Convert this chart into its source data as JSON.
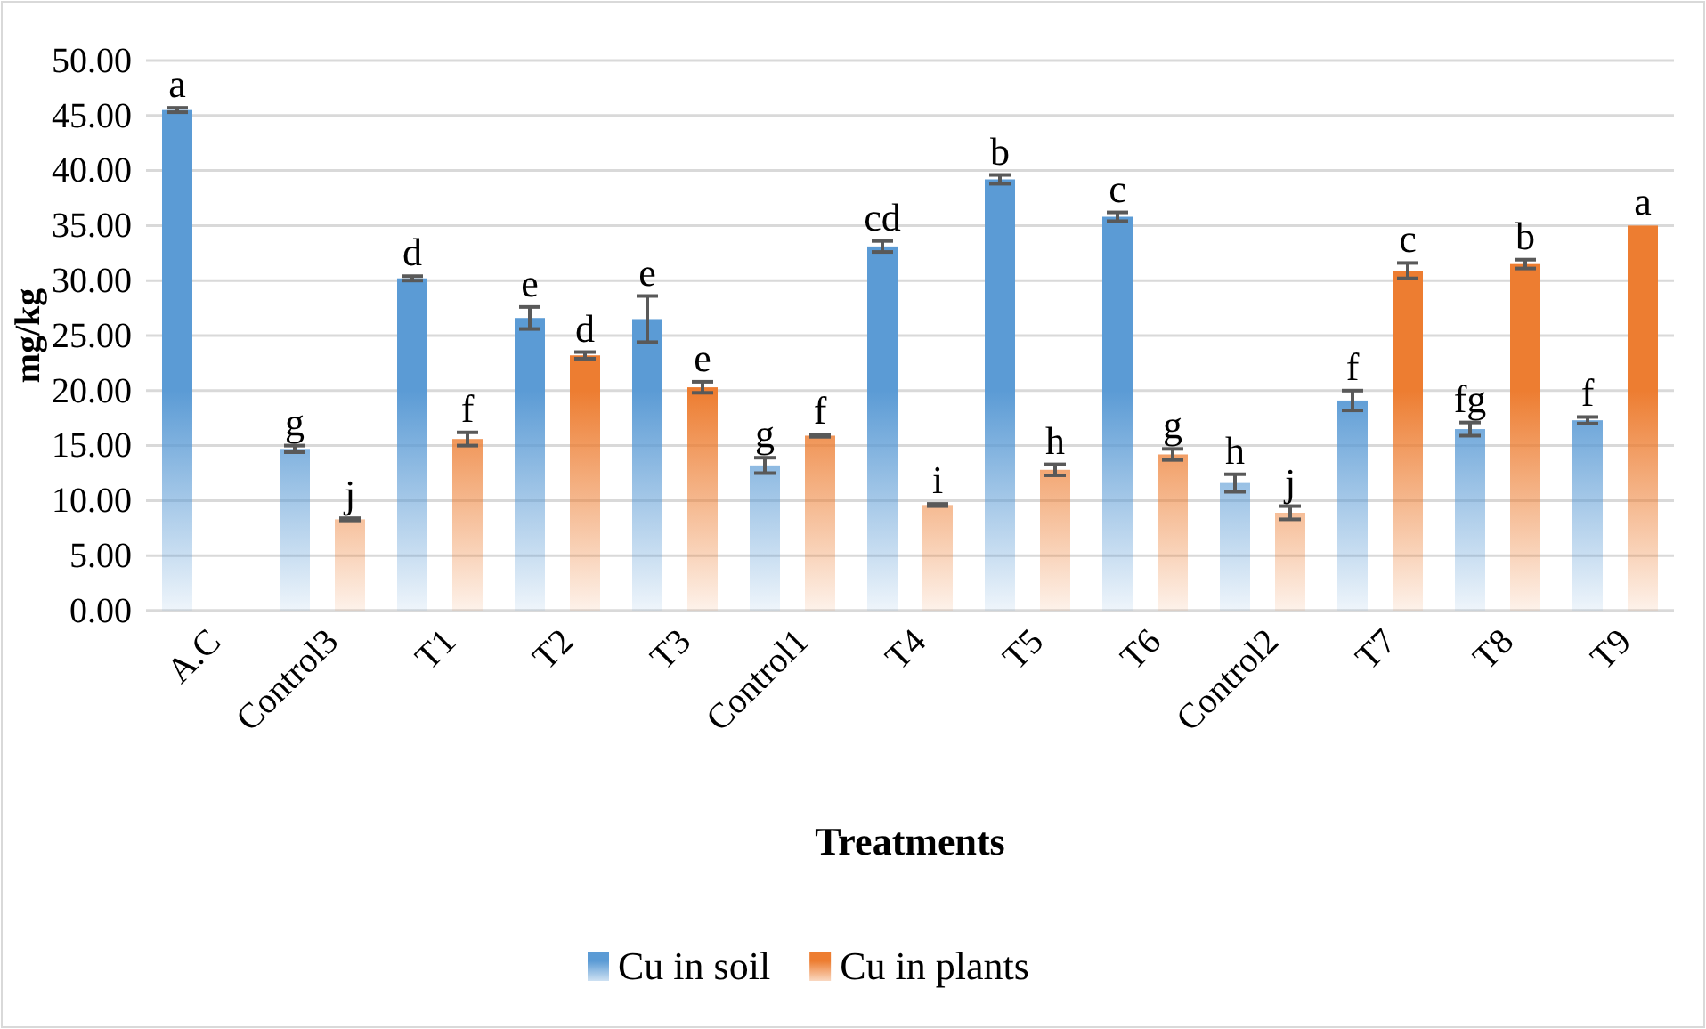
{
  "chart_data": {
    "type": "bar",
    "xlabel": "Treatments",
    "ylabel": "mg/kg",
    "categories": [
      "A.C",
      "Control3",
      "T1",
      "T2",
      "T3",
      "Control1",
      "T4",
      "T5",
      "T6",
      "Control2",
      "T7",
      "T8",
      "T9"
    ],
    "series": [
      {
        "name": "Cu in soil",
        "color": "#5b9bd5",
        "values": [
          45.5,
          14.7,
          30.2,
          26.6,
          26.5,
          13.2,
          33.1,
          39.2,
          35.8,
          11.6,
          19.1,
          16.5,
          17.3
        ],
        "errors": [
          0.2,
          0.3,
          0.2,
          1.0,
          2.1,
          0.7,
          0.5,
          0.4,
          0.4,
          0.8,
          0.9,
          0.6,
          0.3
        ],
        "value_labels": [
          "a",
          "g",
          "d",
          "e",
          "e",
          "g",
          "cd",
          "b",
          "c",
          "h",
          "f",
          "fg",
          "f"
        ]
      },
      {
        "name": "Cu in plants",
        "color": "#ed7d31",
        "values": [
          null,
          8.3,
          15.6,
          23.2,
          20.3,
          15.9,
          9.6,
          12.8,
          14.2,
          8.9,
          30.9,
          31.5,
          35.0
        ],
        "errors": [
          null,
          0.1,
          0.6,
          0.3,
          0.5,
          0.1,
          0.1,
          0.5,
          0.5,
          0.6,
          0.7,
          0.4,
          null
        ],
        "value_labels": [
          null,
          "j",
          "f",
          "d",
          "e",
          "f",
          "i",
          "h",
          "g",
          "j",
          "c",
          "b",
          "a"
        ]
      }
    ],
    "ylim": [
      0,
      50
    ],
    "yticks": [
      {
        "value": 0,
        "label": "0.00"
      },
      {
        "value": 5,
        "label": "5.00"
      },
      {
        "value": 10,
        "label": "10.00"
      },
      {
        "value": 15,
        "label": "15.00"
      },
      {
        "value": 20,
        "label": "20.00"
      },
      {
        "value": 25,
        "label": "25.00"
      },
      {
        "value": 30,
        "label": "30.00"
      },
      {
        "value": 35,
        "label": "35.00"
      },
      {
        "value": 40,
        "label": "40.00"
      },
      {
        "value": 45,
        "label": "45.00"
      },
      {
        "value": 50,
        "label": "50.00"
      }
    ],
    "grid": "y",
    "legend": "bottom"
  }
}
